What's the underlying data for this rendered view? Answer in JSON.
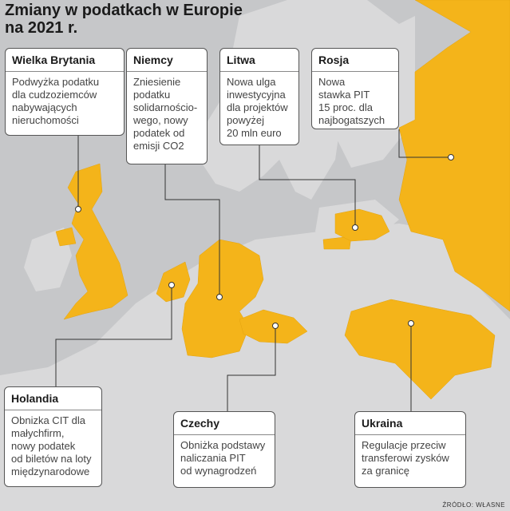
{
  "title_line1": "Zmiany w podatkach w Europie",
  "title_line2": "na 2021 r.",
  "source": "ŹRÓDŁO: WŁASNE",
  "colors": {
    "highlight": "#f4b41a",
    "land": "#d7d7d8",
    "sea": "#c6c7c9"
  },
  "countries": {
    "uk": {
      "name": "Wielka Brytania",
      "desc": "Podwyżka podatku\ndla cudzoziemców\nnabywających\nnieruchomości"
    },
    "de": {
      "name": "Niemcy",
      "desc": "Zniesienie\npodatku\nsolidarnościo-\nwego, nowy\npodatek od\nemisji CO2"
    },
    "lt": {
      "name": "Litwa",
      "desc": "Nowa ulga\ninwestycyjna\ndla projektów\npowyżej\n20 mln euro"
    },
    "ru": {
      "name": "Rosja",
      "desc": "Nowa\nstawka PIT\n15 proc. dla\nnajbogatszych"
    },
    "nl": {
      "name": "Holandia",
      "desc": "Obnizka CIT dla\nmałychfirm,\nnowy podatek\nod biletów na loty\nmiędzynarodowe"
    },
    "cz": {
      "name": "Czechy",
      "desc": "Obniżka podstawy\nnaliczania PIT\nod wynagrodzeń"
    },
    "ua": {
      "name": "Ukraina",
      "desc": "Regulacje przeciw\ntransferowi zysków\nza granicę"
    }
  }
}
